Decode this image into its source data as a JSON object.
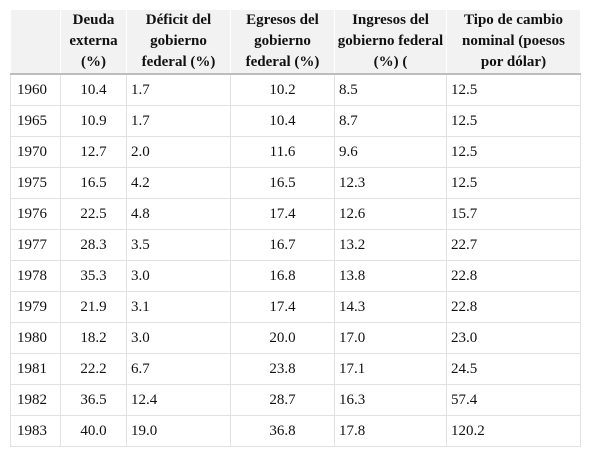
{
  "table": {
    "headers": [
      "",
      "Deuda externa (%)",
      "Déficit del gobierno federal (%)",
      "Egresos del gobierno federal (%)",
      "Ingresos del gobierno federal (%) (",
      "Tipo de cambio nominal (poesos por dólar)"
    ],
    "rows": [
      [
        "1960",
        "10.4",
        "1.7",
        "10.2",
        "8.5",
        "12.5"
      ],
      [
        "1965",
        "10.9",
        "1.7",
        "10.4",
        "8.7",
        "12.5"
      ],
      [
        "1970",
        "12.7",
        "2.0",
        "11.6",
        "9.6",
        "12.5"
      ],
      [
        "1975",
        "16.5",
        "4.2",
        "16.5",
        "12.3",
        "12.5"
      ],
      [
        "1976",
        "22.5",
        "4.8",
        "17.4",
        "12.6",
        "15.7"
      ],
      [
        "1977",
        "28.3",
        "3.5",
        "16.7",
        "13.2",
        "22.7"
      ],
      [
        "1978",
        "35.3",
        "3.0",
        "16.8",
        "13.8",
        "22.8"
      ],
      [
        "1979",
        "21.9",
        "3.1",
        "17.4",
        "14.3",
        "22.8"
      ],
      [
        "1980",
        "18.2",
        "3.0",
        "20.0",
        "17.0",
        "23.0"
      ],
      [
        "1981",
        "22.2",
        "6.7",
        "23.8",
        "17.1",
        "24.5"
      ],
      [
        "1982",
        "36.5",
        "12.4",
        "28.7",
        "16.3",
        "57.4"
      ],
      [
        "1983",
        "40.0",
        "19.0",
        "36.8",
        "17.8",
        "120.2"
      ]
    ]
  }
}
